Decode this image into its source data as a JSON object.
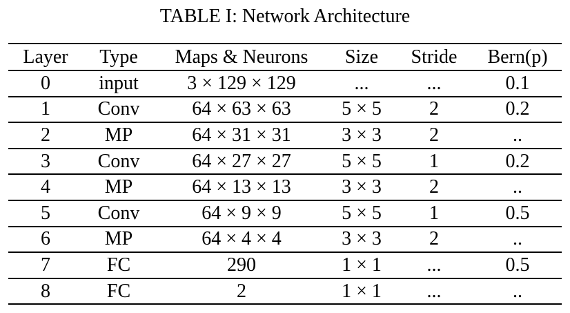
{
  "caption": "TABLE I: Network Architecture",
  "table": {
    "headers": [
      "Layer",
      "Type",
      "Maps & Neurons",
      "Size",
      "Stride",
      "Bern(p)"
    ],
    "rows": [
      [
        "0",
        "input",
        "3 × 129 × 129",
        "...",
        "...",
        "0.1"
      ],
      [
        "1",
        "Conv",
        "64 × 63 × 63",
        "5 × 5",
        "2",
        "0.2"
      ],
      [
        "2",
        "MP",
        "64 × 31 × 31",
        "3 × 3",
        "2",
        ".."
      ],
      [
        "3",
        "Conv",
        "64 × 27 × 27",
        "5 × 5",
        "1",
        "0.2"
      ],
      [
        "4",
        "MP",
        "64 × 13 × 13",
        "3 × 3",
        "2",
        ".."
      ],
      [
        "5",
        "Conv",
        "64 × 9 × 9",
        "5 × 5",
        "1",
        "0.5"
      ],
      [
        "6",
        "MP",
        "64 × 4 × 4",
        "3 × 3",
        "2",
        ".."
      ],
      [
        "7",
        "FC",
        "290",
        "1 × 1",
        "...",
        "0.5"
      ],
      [
        "8",
        "FC",
        "2",
        "1 × 1",
        "...",
        ".."
      ]
    ]
  }
}
